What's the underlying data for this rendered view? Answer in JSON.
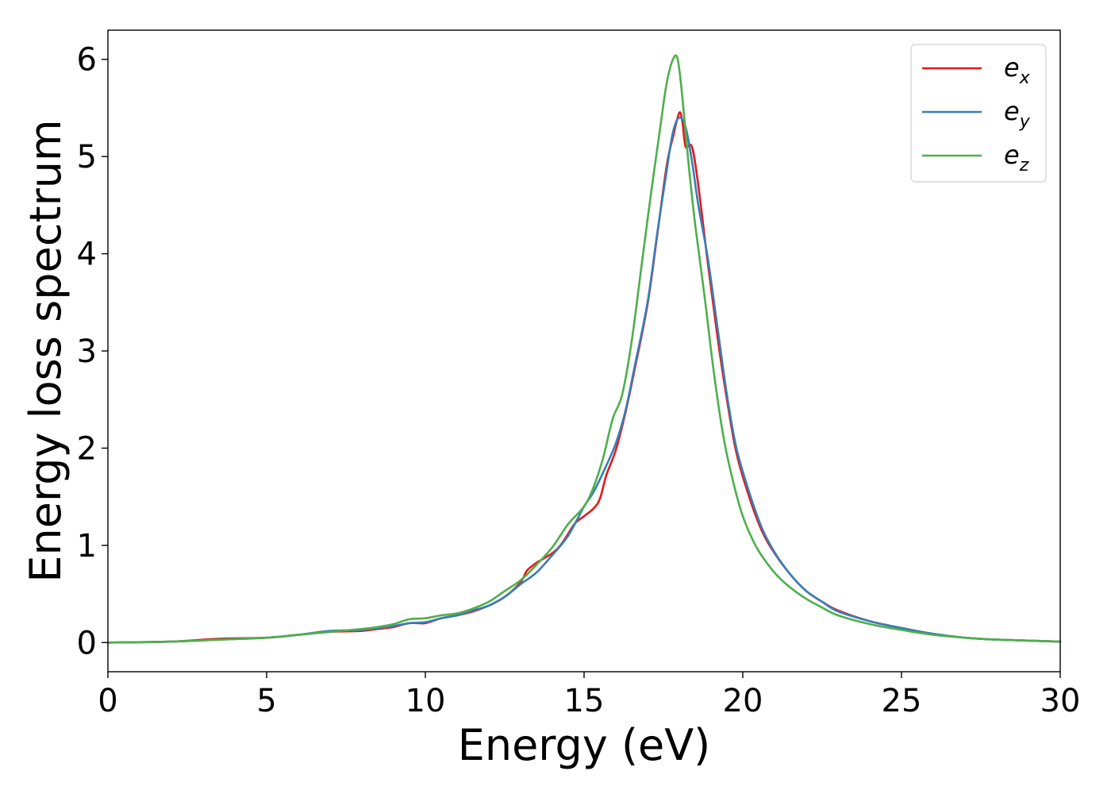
{
  "chart_data": {
    "type": "line",
    "xlabel": "Energy (eV)",
    "ylabel": "Energy loss spectrum",
    "xlim": [
      0,
      30
    ],
    "ylim": [
      -0.3,
      6.3
    ],
    "xticks": [
      0,
      5,
      10,
      15,
      20,
      25,
      30
    ],
    "yticks": [
      0,
      1,
      2,
      3,
      4,
      5,
      6
    ],
    "xtick_labels": [
      "0",
      "5",
      "10",
      "15",
      "20",
      "25",
      "30"
    ],
    "ytick_labels": [
      "0",
      "1",
      "2",
      "3",
      "4",
      "5",
      "6"
    ],
    "grid": false,
    "legend_position": "top-right",
    "series": [
      {
        "name": "e_x",
        "label_base": "e",
        "label_sub": "x",
        "color": "#e41a1c",
        "x": [
          0,
          2,
          3.5,
          5,
          6,
          7,
          8,
          8.5,
          9,
          9.5,
          10,
          10.5,
          11,
          11.5,
          12,
          12.5,
          13,
          13.2,
          13.5,
          14,
          14.3,
          14.7,
          15,
          15.3,
          15.5,
          15.7,
          16,
          16.3,
          16.6,
          17,
          17.3,
          17.6,
          17.8,
          18.0,
          18.1,
          18.2,
          18.4,
          18.6,
          18.9,
          19.2,
          19.5,
          19.8,
          20.2,
          20.6,
          21,
          21.5,
          22,
          22.5,
          23,
          24,
          25,
          26,
          27,
          28,
          29,
          30
        ],
        "y": [
          0,
          0.01,
          0.04,
          0.05,
          0.08,
          0.11,
          0.12,
          0.14,
          0.16,
          0.2,
          0.2,
          0.25,
          0.28,
          0.32,
          0.38,
          0.47,
          0.62,
          0.74,
          0.82,
          0.92,
          1.02,
          1.22,
          1.3,
          1.38,
          1.48,
          1.72,
          1.98,
          2.36,
          2.82,
          3.48,
          4.18,
          4.9,
          5.2,
          5.45,
          5.35,
          5.1,
          5.1,
          4.7,
          3.9,
          3.15,
          2.5,
          1.95,
          1.5,
          1.15,
          0.92,
          0.7,
          0.53,
          0.42,
          0.33,
          0.22,
          0.15,
          0.09,
          0.05,
          0.03,
          0.02,
          0.01
        ]
      },
      {
        "name": "e_y",
        "label_base": "e",
        "label_sub": "y",
        "color": "#377eb8",
        "x": [
          0,
          2,
          3.5,
          5,
          6,
          7,
          8,
          8.5,
          9,
          9.5,
          10,
          10.5,
          11,
          11.5,
          12,
          12.5,
          13,
          13.5,
          14,
          14.5,
          15,
          15.3,
          15.7,
          16,
          16.3,
          16.6,
          17,
          17.3,
          17.6,
          17.8,
          18.0,
          18.2,
          18.4,
          18.6,
          18.9,
          19.2,
          19.5,
          19.8,
          20.2,
          20.6,
          21,
          21.5,
          22,
          22.5,
          23,
          24,
          25,
          26,
          27,
          28,
          29,
          30
        ],
        "y": [
          0,
          0.01,
          0.03,
          0.05,
          0.08,
          0.12,
          0.13,
          0.15,
          0.17,
          0.2,
          0.21,
          0.25,
          0.28,
          0.33,
          0.38,
          0.47,
          0.6,
          0.72,
          0.9,
          1.1,
          1.4,
          1.55,
          1.82,
          2.05,
          2.38,
          2.85,
          3.5,
          4.2,
          4.85,
          5.25,
          5.4,
          5.3,
          4.95,
          4.5,
          3.95,
          3.25,
          2.55,
          2.0,
          1.55,
          1.18,
          0.93,
          0.7,
          0.53,
          0.42,
          0.32,
          0.22,
          0.15,
          0.09,
          0.05,
          0.03,
          0.02,
          0.01
        ]
      },
      {
        "name": "e_z",
        "label_base": "e",
        "label_sub": "z",
        "color": "#4daf4a",
        "x": [
          0,
          2,
          3.5,
          5,
          6,
          7,
          8,
          8.5,
          9,
          9.5,
          10,
          10.5,
          11,
          11.5,
          12,
          12.5,
          13,
          13.5,
          14,
          14.5,
          15,
          15.3,
          15.6,
          15.9,
          16.2,
          16.5,
          16.8,
          17.1,
          17.4,
          17.6,
          17.8,
          17.95,
          18.1,
          18.3,
          18.5,
          18.8,
          19.1,
          19.4,
          19.7,
          20,
          20.4,
          20.8,
          21.2,
          21.6,
          22,
          22.5,
          23,
          24,
          25,
          26,
          27,
          28,
          29,
          30
        ],
        "y": [
          0,
          0.01,
          0.03,
          0.05,
          0.08,
          0.11,
          0.14,
          0.16,
          0.19,
          0.24,
          0.25,
          0.28,
          0.3,
          0.35,
          0.42,
          0.53,
          0.64,
          0.8,
          0.98,
          1.22,
          1.4,
          1.6,
          1.9,
          2.3,
          2.55,
          3.1,
          3.85,
          4.6,
          5.3,
          5.75,
          6.0,
          6.0,
          5.6,
          4.9,
          4.3,
          3.55,
          2.75,
          2.1,
          1.65,
          1.3,
          1.0,
          0.8,
          0.65,
          0.54,
          0.45,
          0.36,
          0.28,
          0.19,
          0.13,
          0.08,
          0.05,
          0.03,
          0.02,
          0.01
        ]
      }
    ]
  }
}
